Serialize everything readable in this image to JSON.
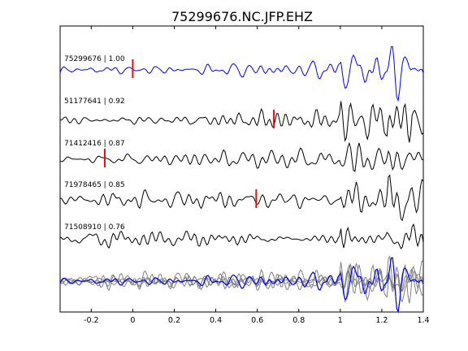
{
  "chart_data": {
    "type": "line",
    "title": "75299676.NC.JFP.EHZ",
    "xlabel": "",
    "ylabel": "",
    "xlim": [
      -0.35,
      1.4
    ],
    "xticks": [
      -0.2,
      0,
      0.2,
      0.4,
      0.6,
      0.8,
      1,
      1.2,
      1.4
    ],
    "xtick_labels": [
      "-0.2",
      "0",
      "0.2",
      "0.4",
      "0.6",
      "0.8",
      "1",
      "1.2",
      "1.4"
    ],
    "grid": false,
    "traces": [
      {
        "name": "75299676 | 1.00",
        "color": "#0000ff",
        "pick": 0.0
      },
      {
        "name": "51177641 | 0.92",
        "color": "#000000",
        "pick": 0.68
      },
      {
        "name": "71412416 | 0.87",
        "color": "#000000",
        "pick": -0.135
      },
      {
        "name": "71978465 | 0.85",
        "color": "#000000",
        "pick": 0.595
      },
      {
        "name": "71508910 | 0.76",
        "color": "#000000",
        "pick": null
      }
    ],
    "stack": {
      "name": "overlay",
      "colors": [
        "#0000ff",
        "#808080"
      ]
    },
    "pick_color": "#ff0000"
  }
}
